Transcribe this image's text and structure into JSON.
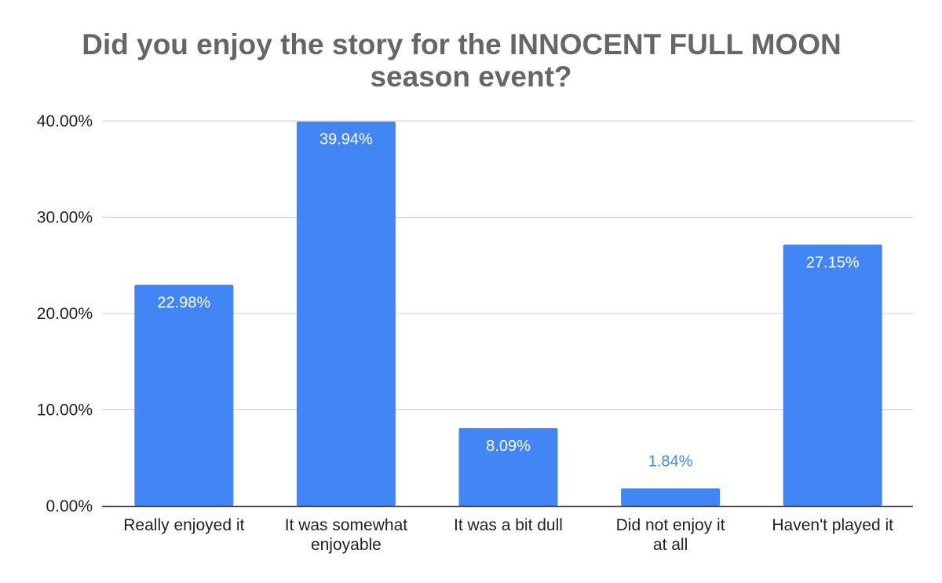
{
  "chart_data": {
    "type": "bar",
    "title_lines": [
      "Did you enjoy the story for the INNOCENT FULL MOON",
      "season event?"
    ],
    "categories": [
      [
        "Really enjoyed it"
      ],
      [
        "It was somewhat",
        "enjoyable"
      ],
      [
        "It was a bit dull"
      ],
      [
        "Did not enjoy it",
        "at all"
      ],
      [
        "Haven't played it"
      ]
    ],
    "values": [
      22.98,
      39.94,
      8.09,
      1.84,
      27.15
    ],
    "value_labels": [
      "22.98%",
      "39.94%",
      "8.09%",
      "1.84%",
      "27.15%"
    ],
    "yticks": [
      0,
      10,
      20,
      30,
      40
    ],
    "ytick_labels": [
      "0.00%",
      "10.00%",
      "20.00%",
      "30.00%",
      "40.00%"
    ],
    "ylim": [
      0,
      40
    ],
    "grid": true,
    "legend": "none",
    "colors": {
      "bar": "#4285F4",
      "label_inside": "#ffffff",
      "label_outside": "#4285F4",
      "grid": "#cccccc",
      "axis": "#333333",
      "title": "#666666",
      "text": "#222222"
    }
  }
}
